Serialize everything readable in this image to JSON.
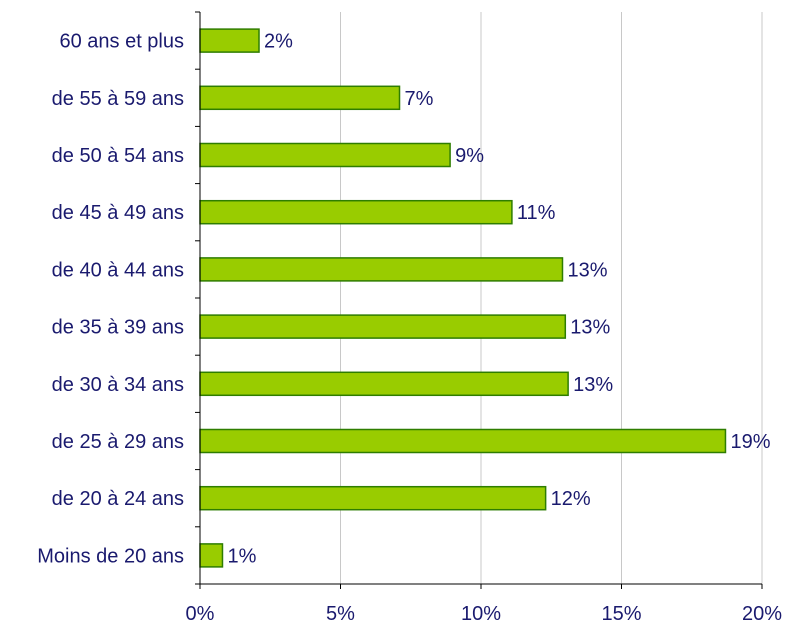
{
  "chart_data": {
    "type": "bar",
    "orientation": "horizontal",
    "categories": [
      "60 ans et plus",
      "de 55 à 59 ans",
      "de 50 à 54 ans",
      "de 45 à 49 ans",
      "de 40 à 44 ans",
      "de 35 à 39 ans",
      "de 30 à 34 ans",
      "de 25 à 29 ans",
      "de 20 à 24 ans",
      "Moins de 20 ans"
    ],
    "values": [
      2.1,
      7.1,
      8.9,
      11.1,
      12.9,
      13.0,
      13.1,
      18.7,
      12.3,
      0.8
    ],
    "data_labels": [
      "2%",
      "7%",
      "9%",
      "11%",
      "13%",
      "13%",
      "13%",
      "19%",
      "12%",
      "1%"
    ],
    "xlim": [
      0,
      20
    ],
    "x_ticks": [
      0,
      5,
      10,
      15,
      20
    ],
    "x_tick_labels": [
      "0%",
      "5%",
      "10%",
      "15%",
      "20%"
    ],
    "grid": true,
    "bar_color": "#99cc00",
    "bar_edge_color": "#2e7d00",
    "text_color": "#1a1a6e",
    "title": "",
    "xlabel": "",
    "ylabel": ""
  }
}
